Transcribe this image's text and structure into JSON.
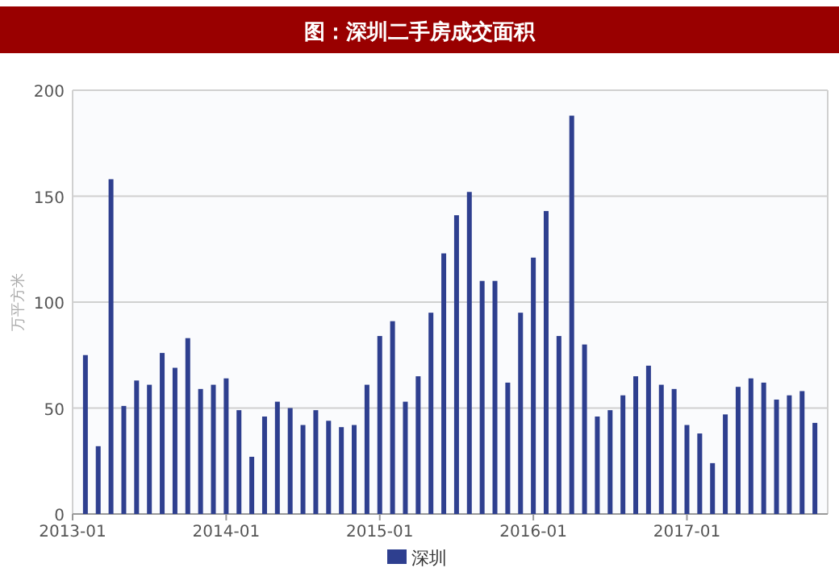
{
  "chart_data": {
    "type": "bar",
    "title": "图：深圳二手房成交面积",
    "ylabel": "万平方米",
    "x": [
      "2013-02",
      "2013-03",
      "2013-04",
      "2013-05",
      "2013-06",
      "2013-07",
      "2013-08",
      "2013-09",
      "2013-10",
      "2013-11",
      "2013-12",
      "2014-01",
      "2014-02",
      "2014-03",
      "2014-04",
      "2014-05",
      "2014-06",
      "2014-07",
      "2014-08",
      "2014-09",
      "2014-10",
      "2014-11",
      "2014-12",
      "2015-01",
      "2015-02",
      "2015-03",
      "2015-04",
      "2015-05",
      "2015-06",
      "2015-07",
      "2015-08",
      "2015-09",
      "2015-10",
      "2015-11",
      "2015-12",
      "2016-01",
      "2016-02",
      "2016-03",
      "2016-04",
      "2016-05",
      "2016-06",
      "2016-07",
      "2016-08",
      "2016-09",
      "2016-10",
      "2016-11",
      "2016-12",
      "2017-01",
      "2017-02",
      "2017-03",
      "2017-04",
      "2017-05",
      "2017-06",
      "2017-07",
      "2017-08",
      "2017-09",
      "2017-10",
      "2017-11"
    ],
    "series": [
      {
        "name": "深圳",
        "color": "#2e3f8f",
        "values": [
          75,
          32,
          158,
          51,
          63,
          61,
          76,
          69,
          83,
          59,
          61,
          64,
          49,
          27,
          46,
          53,
          50,
          42,
          49,
          44,
          41,
          42,
          61,
          84,
          91,
          53,
          65,
          95,
          123,
          141,
          152,
          110,
          110,
          62,
          95,
          121,
          143,
          84,
          188,
          80,
          46,
          49,
          56,
          65,
          70,
          61,
          59,
          42,
          38,
          24,
          47,
          60,
          64,
          62,
          54,
          56,
          58,
          43
        ]
      }
    ],
    "xlim": [
      "2013-01",
      "2017-12"
    ],
    "xticks": [
      "2013-01",
      "2014-01",
      "2015-01",
      "2016-01",
      "2017-01"
    ],
    "ylim": [
      0,
      200
    ],
    "yticks": [
      0,
      50,
      100,
      150,
      200
    ],
    "grid": "y",
    "legend": "bottom"
  }
}
